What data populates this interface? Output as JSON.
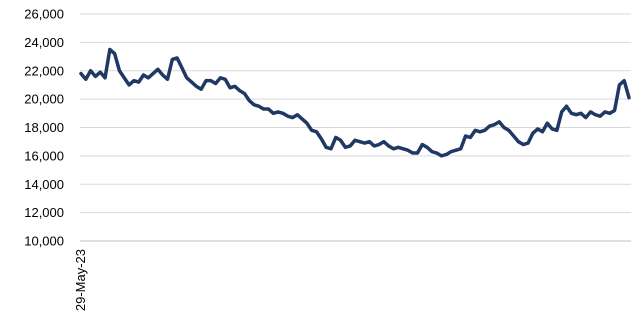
{
  "chart_data": {
    "type": "line",
    "title": "",
    "xlabel": "",
    "ylabel": "",
    "ylim": [
      10000,
      26000
    ],
    "y_ticks": [
      10000,
      12000,
      14000,
      16000,
      18000,
      20000,
      22000,
      24000,
      26000
    ],
    "y_tick_labels": [
      "10,000",
      "12,000",
      "14,000",
      "16,000",
      "18,000",
      "20,000",
      "22,000",
      "24,000",
      "26,000"
    ],
    "x_tick_labels": [
      "29-May-23"
    ],
    "grid": true,
    "legend": "none",
    "line_color": "#1f3864",
    "series": [
      {
        "values": [
          21800,
          21400,
          22000,
          21600,
          21900,
          21500,
          23500,
          23200,
          22000,
          21500,
          21000,
          21300,
          21200,
          21700,
          21500,
          21800,
          22100,
          21700,
          21400,
          22800,
          22900,
          22200,
          21500,
          21200,
          20900,
          20700,
          21300,
          21300,
          21100,
          21500,
          21400,
          20800,
          20900,
          20600,
          20400,
          19900,
          19600,
          19500,
          19300,
          19300,
          19000,
          19100,
          19000,
          18800,
          18700,
          18900,
          18600,
          18300,
          17800,
          17700,
          17200,
          16600,
          16500,
          17300,
          17100,
          16600,
          16700,
          17100,
          17000,
          16900,
          17000,
          16700,
          16800,
          17000,
          16700,
          16500,
          16600,
          16500,
          16400,
          16200,
          16200,
          16800,
          16600,
          16300,
          16200,
          16000,
          16100,
          16300,
          16400,
          16500,
          17400,
          17300,
          17800,
          17700,
          17800,
          18100,
          18200,
          18400,
          18000,
          17800,
          17400,
          17000,
          16800,
          16900,
          17600,
          17900,
          17700,
          18300,
          17900,
          17800,
          19100,
          19500,
          19000,
          18900,
          19000,
          18700,
          19100,
          18900,
          18800,
          19100,
          19000,
          19200,
          21000,
          21300,
          20100
        ]
      }
    ]
  }
}
